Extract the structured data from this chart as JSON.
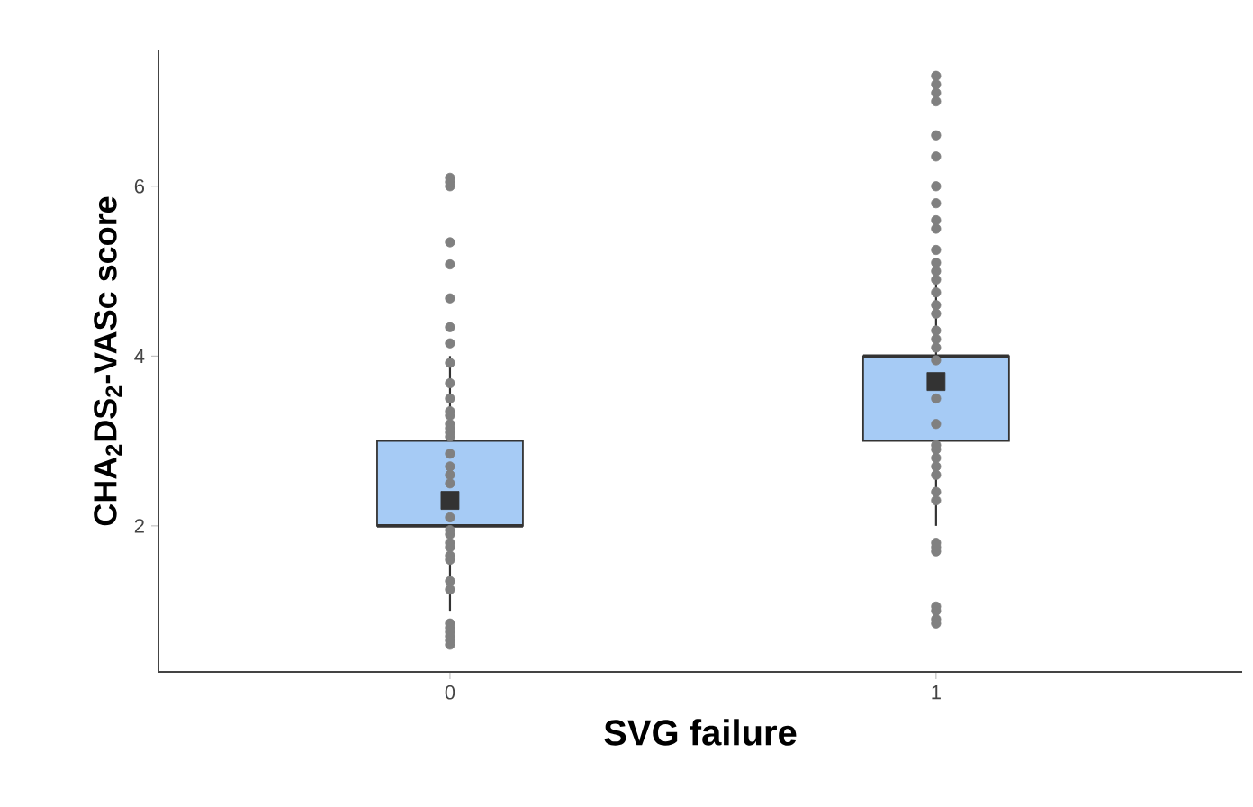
{
  "chart_data": {
    "type": "box",
    "xlabel": "SVG failure",
    "ylabel": "CHA$_{2}$DS$_{2}$-VASc score",
    "categories": [
      "0",
      "1"
    ],
    "ylim": [
      0.28,
      7.6
    ],
    "yticks": [
      2,
      4,
      6
    ],
    "grid": false,
    "series": [
      {
        "color": "#a6cbf5",
        "boxes": [
          {
            "low": 1,
            "q1": 2,
            "median": 2,
            "q3": 3,
            "high": 4,
            "mean": 2.3
          },
          {
            "low": 2,
            "q1": 3,
            "median": 4,
            "q3": 4,
            "high": 5,
            "mean": 3.7
          }
        ]
      },
      {
        "type": "scatter",
        "color": "#808080",
        "marker": "circle",
        "x": [
          "0",
          "0",
          "0",
          "0",
          "0",
          "0",
          "0",
          "0",
          "0",
          "0",
          "0",
          "0",
          "0",
          "0",
          "0",
          "0",
          "0",
          "0",
          "0",
          "0",
          "0",
          "0",
          "0",
          "0",
          "0",
          "0",
          "0",
          "0",
          "0",
          "0",
          "0",
          "0",
          "0",
          "0",
          "0",
          "0"
        ],
        "values": [
          6.1,
          6.05,
          6.0,
          5.34,
          5.08,
          4.68,
          4.34,
          4.15,
          3.92,
          3.68,
          3.5,
          3.35,
          3.3,
          3.2,
          3.15,
          3.1,
          3.05,
          2.85,
          2.7,
          2.5,
          2.6,
          2.1,
          1.95,
          1.9,
          1.8,
          1.75,
          1.65,
          1.6,
          1.35,
          1.25,
          0.85,
          0.8,
          0.75,
          0.7,
          0.65,
          0.6
        ]
      },
      {
        "type": "scatter",
        "color": "#808080",
        "marker": "circle",
        "x": [
          "1",
          "1",
          "1",
          "1",
          "1",
          "1",
          "1",
          "1",
          "1",
          "1",
          "1",
          "1",
          "1",
          "1",
          "1",
          "1",
          "1",
          "1",
          "1",
          "1",
          "1",
          "1",
          "1",
          "1",
          "1",
          "1",
          "1",
          "1",
          "1",
          "1",
          "1",
          "1",
          "1",
          "1",
          "1",
          "1",
          "1"
        ],
        "values": [
          7.3,
          7.2,
          7.1,
          7.0,
          6.6,
          6.35,
          6.0,
          5.8,
          5.6,
          5.5,
          5.25,
          5.1,
          5.0,
          4.9,
          4.75,
          4.6,
          4.5,
          4.3,
          4.2,
          4.1,
          3.95,
          3.5,
          3.2,
          2.95,
          2.9,
          2.8,
          2.7,
          2.6,
          2.4,
          2.3,
          1.8,
          1.75,
          1.7,
          1.05,
          1.0,
          0.9,
          0.85
        ]
      }
    ]
  }
}
